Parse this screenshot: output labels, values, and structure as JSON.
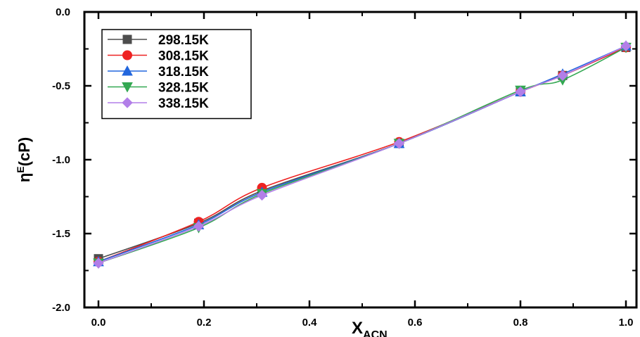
{
  "chart_data": {
    "type": "line",
    "xlabel": {
      "main": "X",
      "sub": "ACN"
    },
    "ylabel": {
      "main": "η",
      "sup": "E",
      "rest": "(cP)"
    },
    "xlim": [
      0.0,
      1.0
    ],
    "ylim": [
      -2.0,
      0.0
    ],
    "xticks": [
      "0.0",
      "0.2",
      "0.4",
      "0.6",
      "0.8",
      "1.0"
    ],
    "yticks": [
      "0.0",
      "-0.5",
      "-1.0",
      "-1.5",
      "-2.0"
    ],
    "grid": false,
    "legend_position": "top-left",
    "series": [
      {
        "name": "298.15K",
        "color": "#4d4d4d",
        "marker": "square",
        "x": [
          0.0,
          0.19,
          0.31,
          0.57,
          0.8,
          0.88,
          1.0
        ],
        "y": [
          -1.67,
          -1.43,
          -1.21,
          -0.89,
          -0.54,
          -0.43,
          -0.24
        ]
      },
      {
        "name": "308.15K",
        "color": "#ee2222",
        "marker": "circle",
        "x": [
          0.0,
          0.19,
          0.31,
          0.57,
          0.8,
          0.88,
          1.0
        ],
        "y": [
          -1.69,
          -1.42,
          -1.19,
          -0.88,
          -0.54,
          -0.43,
          -0.24
        ]
      },
      {
        "name": "318.15K",
        "color": "#2266dd",
        "marker": "triangle-up",
        "x": [
          0.0,
          0.19,
          0.31,
          0.57,
          0.8,
          0.88,
          1.0
        ],
        "y": [
          -1.69,
          -1.44,
          -1.22,
          -0.89,
          -0.54,
          -0.42,
          -0.23
        ]
      },
      {
        "name": "328.15K",
        "color": "#33a852",
        "marker": "triangle-down",
        "x": [
          0.0,
          0.19,
          0.31,
          0.57,
          0.8,
          0.88,
          1.0
        ],
        "y": [
          -1.7,
          -1.46,
          -1.23,
          -0.89,
          -0.53,
          -0.46,
          -0.24
        ]
      },
      {
        "name": "338.15K",
        "color": "#b27fe8",
        "marker": "diamond",
        "x": [
          0.0,
          0.19,
          0.31,
          0.57,
          0.8,
          0.88,
          1.0
        ],
        "y": [
          -1.7,
          -1.45,
          -1.24,
          -0.89,
          -0.54,
          -0.43,
          -0.23
        ]
      }
    ]
  }
}
